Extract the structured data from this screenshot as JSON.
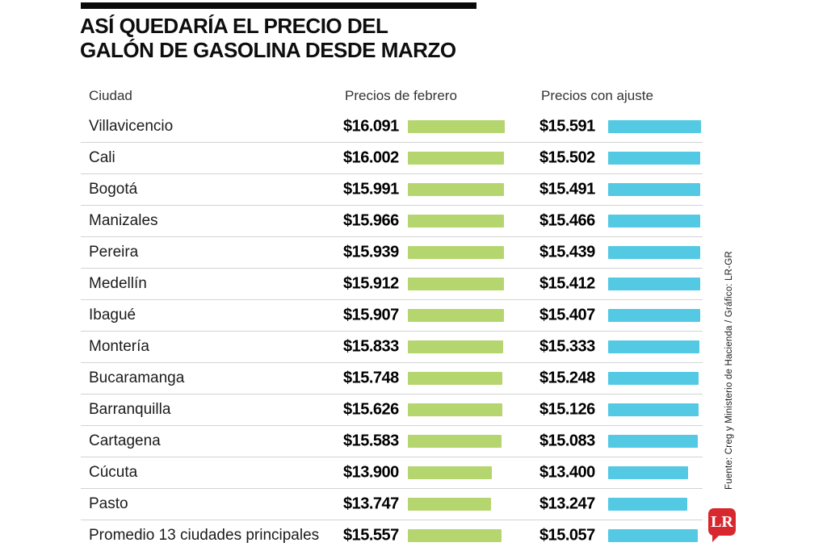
{
  "title": {
    "line1": "ASÍ QUEDARÍA EL PRECIO DEL",
    "line2": "GALÓN DE GASOLINA DESDE MARZO"
  },
  "table": {
    "columns": [
      "Ciudad",
      "Precios de febrero",
      "Precios con ajuste"
    ],
    "rows": [
      {
        "city": "Villavicencio",
        "feb": "$16.091",
        "ajuste": "$15.591"
      },
      {
        "city": "Cali",
        "feb": "$16.002",
        "ajuste": "$15.502"
      },
      {
        "city": "Bogotá",
        "feb": "$15.991",
        "ajuste": "$15.491"
      },
      {
        "city": "Manizales",
        "feb": "$15.966",
        "ajuste": "$15.466"
      },
      {
        "city": "Pereira",
        "feb": "$15.939",
        "ajuste": "$15.439"
      },
      {
        "city": "Medellín",
        "feb": "$15.912",
        "ajuste": "$15.412"
      },
      {
        "city": "Ibagué",
        "feb": "$15.907",
        "ajuste": "$15.407"
      },
      {
        "city": "Montería",
        "feb": "$15.833",
        "ajuste": "$15.333"
      },
      {
        "city": "Bucaramanga",
        "feb": "$15.748",
        "ajuste": "$15.248"
      },
      {
        "city": "Barranquilla",
        "feb": "$15.626",
        "ajuste": "$15.126"
      },
      {
        "city": "Cartagena",
        "feb": "$15.583",
        "ajuste": "$15.083"
      },
      {
        "city": "Cúcuta",
        "feb": "$13.900",
        "ajuste": "$13.400"
      },
      {
        "city": "Pasto",
        "feb": "$13.747",
        "ajuste": "$13.247"
      },
      {
        "city": "Promedio 13 ciudades principales",
        "feb": "$15.557",
        "ajuste": "$15.057"
      }
    ]
  },
  "source": "Fuente: Creg y Ministerio de Hacienda / Gráfico: LR-GR",
  "logo_text": "LR",
  "colors": {
    "feb_bar": "#b5d56e",
    "ajuste_bar": "#54c9e3",
    "brand_red": "#d7282f",
    "rule_black": "#0a0a0a",
    "divider": "#d3d3d3"
  },
  "chart_data": {
    "type": "bar",
    "title": "ASÍ QUEDARÍA EL PRECIO DEL GALÓN DE GASOLINA DESDE MARZO",
    "categories": [
      "Villavicencio",
      "Cali",
      "Bogotá",
      "Manizales",
      "Pereira",
      "Medellín",
      "Ibagué",
      "Montería",
      "Bucaramanga",
      "Barranquilla",
      "Cartagena",
      "Cúcuta",
      "Pasto",
      "Promedio 13 ciudades principales"
    ],
    "series": [
      {
        "name": "Precios de febrero",
        "color": "#b5d56e",
        "values": [
          16091,
          16002,
          15991,
          15966,
          15939,
          15912,
          15907,
          15833,
          15748,
          15626,
          15583,
          13900,
          13747,
          15557
        ]
      },
      {
        "name": "Precios con ajuste",
        "color": "#54c9e3",
        "values": [
          15591,
          15502,
          15491,
          15466,
          15439,
          15412,
          15407,
          15333,
          15248,
          15126,
          15083,
          13400,
          13247,
          15057
        ]
      }
    ],
    "value_format": "$ with thousands dot (COP per gallon)",
    "orientation": "horizontal",
    "legend_position": "column headers",
    "grid": false,
    "source": "Fuente: Creg y Ministerio de Hacienda / Gráfico: LR-GR"
  }
}
